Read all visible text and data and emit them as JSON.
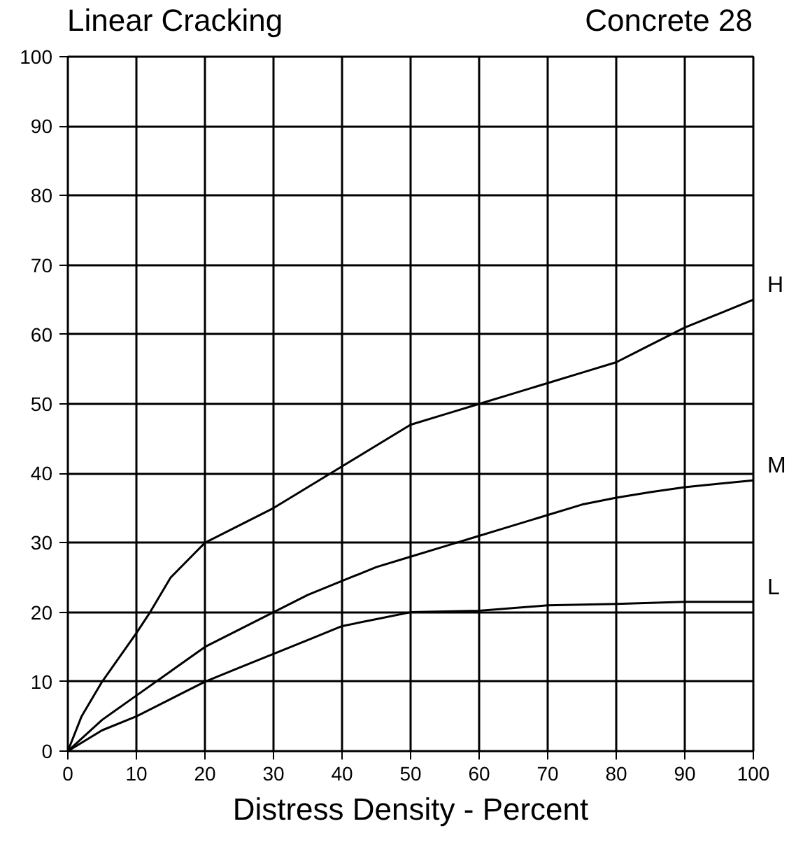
{
  "chart_data": {
    "type": "line",
    "title": "Linear Cracking",
    "subtitle": "Concrete 28",
    "xlabel": "Distress Density - Percent",
    "xlim": [
      0,
      100
    ],
    "ylim": [
      0,
      100
    ],
    "xticks": [
      0,
      10,
      20,
      30,
      40,
      50,
      60,
      70,
      80,
      90,
      100
    ],
    "yticks": [
      0,
      10,
      20,
      30,
      40,
      50,
      60,
      70,
      80,
      90,
      100
    ],
    "grid": true,
    "marker": "none",
    "line_style": "solid",
    "series": [
      {
        "name": "H",
        "color": "#000000",
        "x": [
          0,
          2,
          5,
          10,
          12,
          15,
          18,
          20,
          25,
          30,
          35,
          40,
          45,
          50,
          55,
          60,
          65,
          70,
          75,
          80,
          85,
          90,
          95,
          100
        ],
        "values": [
          0,
          5,
          10,
          17,
          20,
          25,
          28,
          30,
          32.5,
          35,
          38,
          41,
          44,
          47,
          48.5,
          50,
          51.5,
          53,
          54.5,
          56,
          58.5,
          61,
          63,
          65
        ]
      },
      {
        "name": "M",
        "color": "#000000",
        "x": [
          0,
          5,
          10,
          15,
          20,
          25,
          30,
          35,
          40,
          45,
          50,
          55,
          60,
          65,
          70,
          75,
          80,
          85,
          90,
          95,
          100
        ],
        "values": [
          0,
          4.5,
          8,
          11.5,
          15,
          17.5,
          20,
          22.5,
          24.5,
          26.5,
          28,
          29.5,
          31,
          32.5,
          34,
          35.5,
          36.5,
          37.3,
          38,
          38.5,
          39
        ]
      },
      {
        "name": "L",
        "color": "#000000",
        "x": [
          0,
          5,
          10,
          15,
          20,
          25,
          30,
          35,
          40,
          45,
          50,
          60,
          70,
          80,
          90,
          100
        ],
        "values": [
          0,
          3,
          5,
          7.5,
          10,
          12,
          14,
          16,
          18,
          19,
          20,
          20.2,
          21,
          21.2,
          21.5,
          21.5
        ]
      }
    ]
  }
}
